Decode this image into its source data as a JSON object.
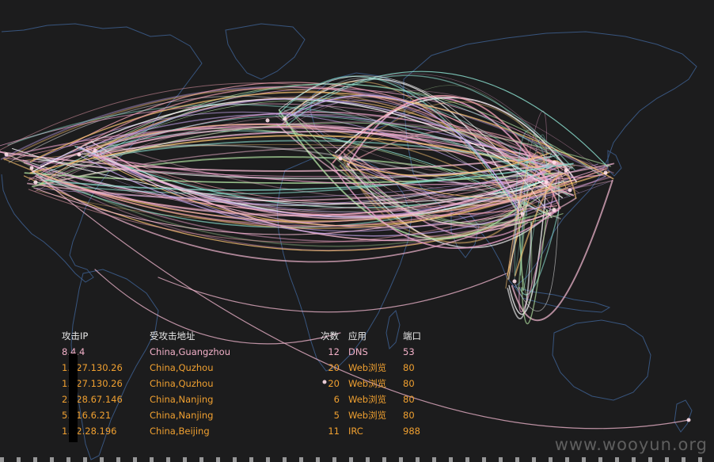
{
  "watermark": "www.wooyun.org",
  "table": {
    "headers": {
      "ip": "攻击IP",
      "target": "受攻击地址",
      "count": "次数",
      "app": "应用",
      "port": "端口"
    },
    "rows": [
      {
        "ip": "8.4.4",
        "target": "China,Guangzhou",
        "count": "12",
        "app": "DNS",
        "port": "53"
      },
      {
        "ip": "1.227.130.26",
        "target": "China,Quzhou",
        "count": "20",
        "app": "Web浏览",
        "port": "80"
      },
      {
        "ip": "1.227.130.26",
        "target": "China,Quzhou",
        "count": "20",
        "app": "Web浏览",
        "port": "80"
      },
      {
        "ip": "2.228.67.146",
        "target": "China,Nanjing",
        "count": "6",
        "app": "Web浏览",
        "port": "80"
      },
      {
        "ip": "5.216.6.21",
        "target": "China,Nanjing",
        "count": "5",
        "app": "Web浏览",
        "port": "80"
      },
      {
        "ip": "1.22.28.196",
        "target": "China,Beijing",
        "count": "11",
        "app": "IRC",
        "port": "988"
      }
    ]
  },
  "colors": {
    "background": "#1c1c1d",
    "coastline": "#3d5f8f",
    "row_text": "#f0a030",
    "row_highlight": "#f2b0c8",
    "arc_palette": [
      "#f3b8d0",
      "#e8a0c8",
      "#c9a8f0",
      "#8ce0d0",
      "#f5c070",
      "#ffffff",
      "#f0a0b0",
      "#b0e0a0"
    ]
  }
}
